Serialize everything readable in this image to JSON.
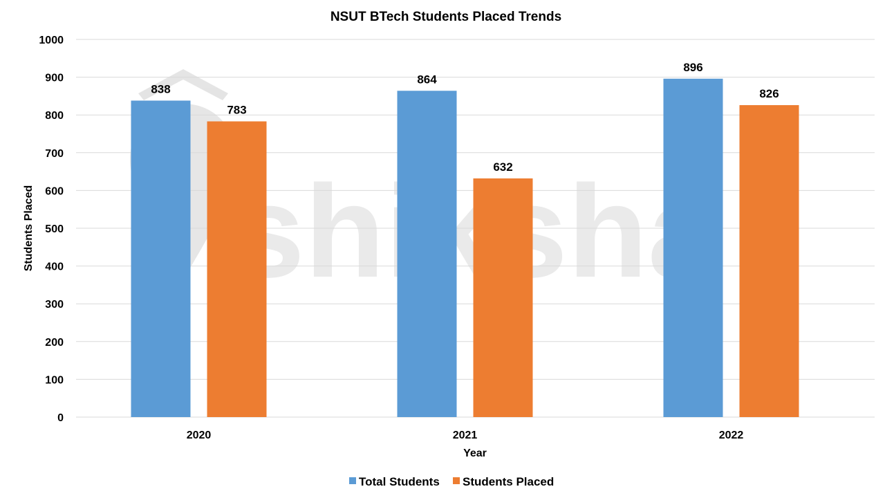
{
  "chart_data": {
    "type": "bar",
    "title": "NSUT BTech Students Placed Trends",
    "xlabel": "Year",
    "ylabel": "Students Placed",
    "categories": [
      "2020",
      "2021",
      "2022"
    ],
    "series": [
      {
        "name": "Total Students",
        "values": [
          838,
          864,
          896
        ],
        "color": "#5b9bd5"
      },
      {
        "name": "Students Placed",
        "values": [
          783,
          632,
          826
        ],
        "color": "#ed7d31"
      }
    ],
    "ylim": [
      0,
      1000
    ],
    "yticks": [
      0,
      100,
      200,
      300,
      400,
      500,
      600,
      700,
      800,
      900,
      1000
    ],
    "grid": true,
    "legend_position": "bottom",
    "data_labels": true,
    "gridline_color": "#d9d9d9"
  },
  "watermark": {
    "text": "shiksha",
    "icon": "shiksha-logo-icon"
  }
}
